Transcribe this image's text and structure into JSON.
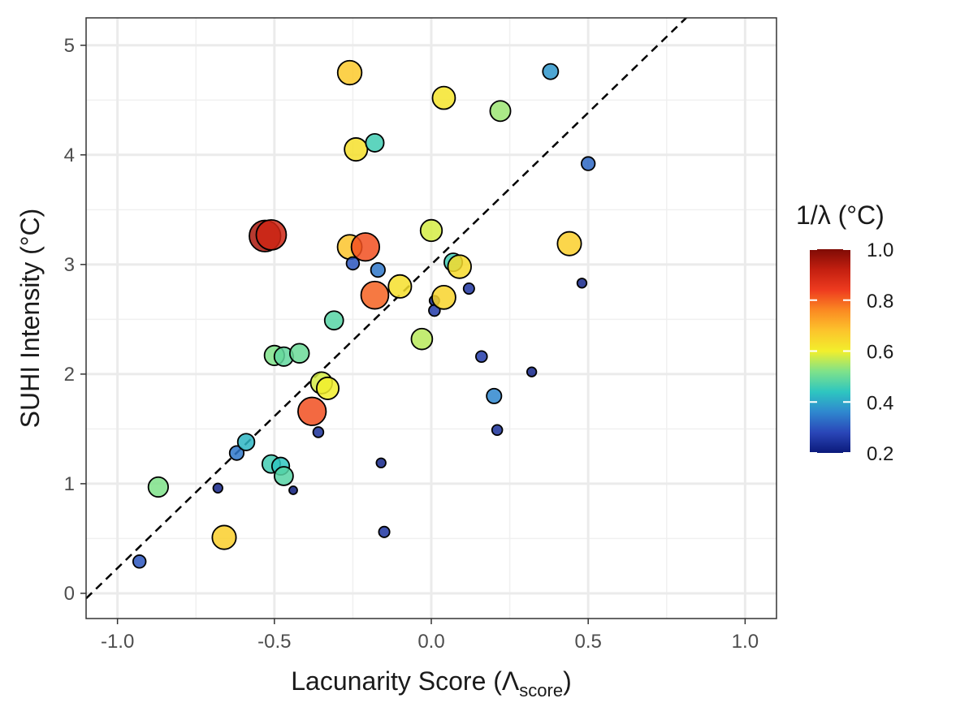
{
  "chart_data": {
    "type": "scatter",
    "xlabel": "Lacunarity Score (Λ",
    "xlabel_sub": "score",
    "xlabel_end": ")",
    "ylabel": "SUHI Intensity (°C)",
    "xlim": [
      -1.1,
      1.1
    ],
    "ylim": [
      -0.23,
      5.25
    ],
    "x_ticks": [
      -1.0,
      -0.5,
      0.0,
      0.5,
      1.0
    ],
    "x_tick_labels": [
      "-1.0",
      "-0.5",
      "0.0",
      "0.5",
      "1.0"
    ],
    "y_ticks": [
      0,
      1,
      2,
      3,
      4,
      5
    ],
    "y_tick_labels": [
      "0",
      "1",
      "2",
      "3",
      "4",
      "5"
    ],
    "grid": true,
    "reference_line": {
      "style": "dashed",
      "slope": 2.77,
      "intercept": 3.0
    },
    "color_legend": {
      "title": "1/λ (°C)",
      "range": [
        0.2,
        1.0
      ],
      "ticks": [
        0.2,
        0.4,
        0.6,
        0.8,
        1.0
      ],
      "tick_labels": [
        "0.2",
        "0.4",
        "0.6",
        "0.8",
        "1.0"
      ],
      "placement": "right"
    },
    "points": [
      {
        "x": -0.93,
        "y": 0.29,
        "c": 0.3
      },
      {
        "x": -0.87,
        "y": 0.97,
        "c": 0.52
      },
      {
        "x": -0.68,
        "y": 0.96,
        "c": 0.22
      },
      {
        "x": -0.66,
        "y": 0.51,
        "c": 0.66
      },
      {
        "x": -0.62,
        "y": 1.28,
        "c": 0.34
      },
      {
        "x": -0.59,
        "y": 1.38,
        "c": 0.42
      },
      {
        "x": -0.51,
        "y": 1.18,
        "c": 0.46
      },
      {
        "x": -0.48,
        "y": 1.16,
        "c": 0.44
      },
      {
        "x": -0.47,
        "y": 1.07,
        "c": 0.48
      },
      {
        "x": -0.44,
        "y": 0.94,
        "c": 0.2
      },
      {
        "x": -0.5,
        "y": 2.17,
        "c": 0.52
      },
      {
        "x": -0.47,
        "y": 2.16,
        "c": 0.49
      },
      {
        "x": -0.42,
        "y": 2.19,
        "c": 0.5
      },
      {
        "x": -0.38,
        "y": 1.66,
        "c": 0.82
      },
      {
        "x": -0.36,
        "y": 1.47,
        "c": 0.24
      },
      {
        "x": -0.35,
        "y": 1.92,
        "c": 0.58
      },
      {
        "x": -0.33,
        "y": 1.87,
        "c": 0.6
      },
      {
        "x": -0.31,
        "y": 2.49,
        "c": 0.48
      },
      {
        "x": -0.53,
        "y": 3.26,
        "c": 0.95
      },
      {
        "x": -0.51,
        "y": 3.27,
        "c": 0.9
      },
      {
        "x": -0.26,
        "y": 3.16,
        "c": 0.68
      },
      {
        "x": -0.25,
        "y": 3.01,
        "c": 0.3
      },
      {
        "x": -0.21,
        "y": 3.16,
        "c": 0.82
      },
      {
        "x": -0.24,
        "y": 4.05,
        "c": 0.63
      },
      {
        "x": -0.26,
        "y": 4.75,
        "c": 0.67
      },
      {
        "x": -0.18,
        "y": 4.11,
        "c": 0.46
      },
      {
        "x": -0.18,
        "y": 2.72,
        "c": 0.8
      },
      {
        "x": -0.17,
        "y": 2.95,
        "c": 0.34
      },
      {
        "x": -0.16,
        "y": 1.19,
        "c": 0.22
      },
      {
        "x": -0.15,
        "y": 0.56,
        "c": 0.25
      },
      {
        "x": -0.1,
        "y": 2.8,
        "c": 0.63
      },
      {
        "x": -0.03,
        "y": 2.32,
        "c": 0.56
      },
      {
        "x": 0.0,
        "y": 3.31,
        "c": 0.58
      },
      {
        "x": 0.01,
        "y": 2.67,
        "c": 0.23
      },
      {
        "x": 0.01,
        "y": 2.58,
        "c": 0.26
      },
      {
        "x": 0.04,
        "y": 4.52,
        "c": 0.62
      },
      {
        "x": 0.04,
        "y": 2.7,
        "c": 0.65
      },
      {
        "x": 0.07,
        "y": 3.02,
        "c": 0.46
      },
      {
        "x": 0.09,
        "y": 2.98,
        "c": 0.64
      },
      {
        "x": 0.12,
        "y": 2.78,
        "c": 0.25
      },
      {
        "x": 0.16,
        "y": 2.16,
        "c": 0.26
      },
      {
        "x": 0.2,
        "y": 1.8,
        "c": 0.36
      },
      {
        "x": 0.21,
        "y": 1.49,
        "c": 0.24
      },
      {
        "x": 0.22,
        "y": 4.4,
        "c": 0.54
      },
      {
        "x": 0.32,
        "y": 2.02,
        "c": 0.22
      },
      {
        "x": 0.38,
        "y": 4.76,
        "c": 0.38
      },
      {
        "x": 0.44,
        "y": 3.19,
        "c": 0.66
      },
      {
        "x": 0.48,
        "y": 2.83,
        "c": 0.22
      },
      {
        "x": 0.5,
        "y": 3.92,
        "c": 0.32
      }
    ]
  }
}
